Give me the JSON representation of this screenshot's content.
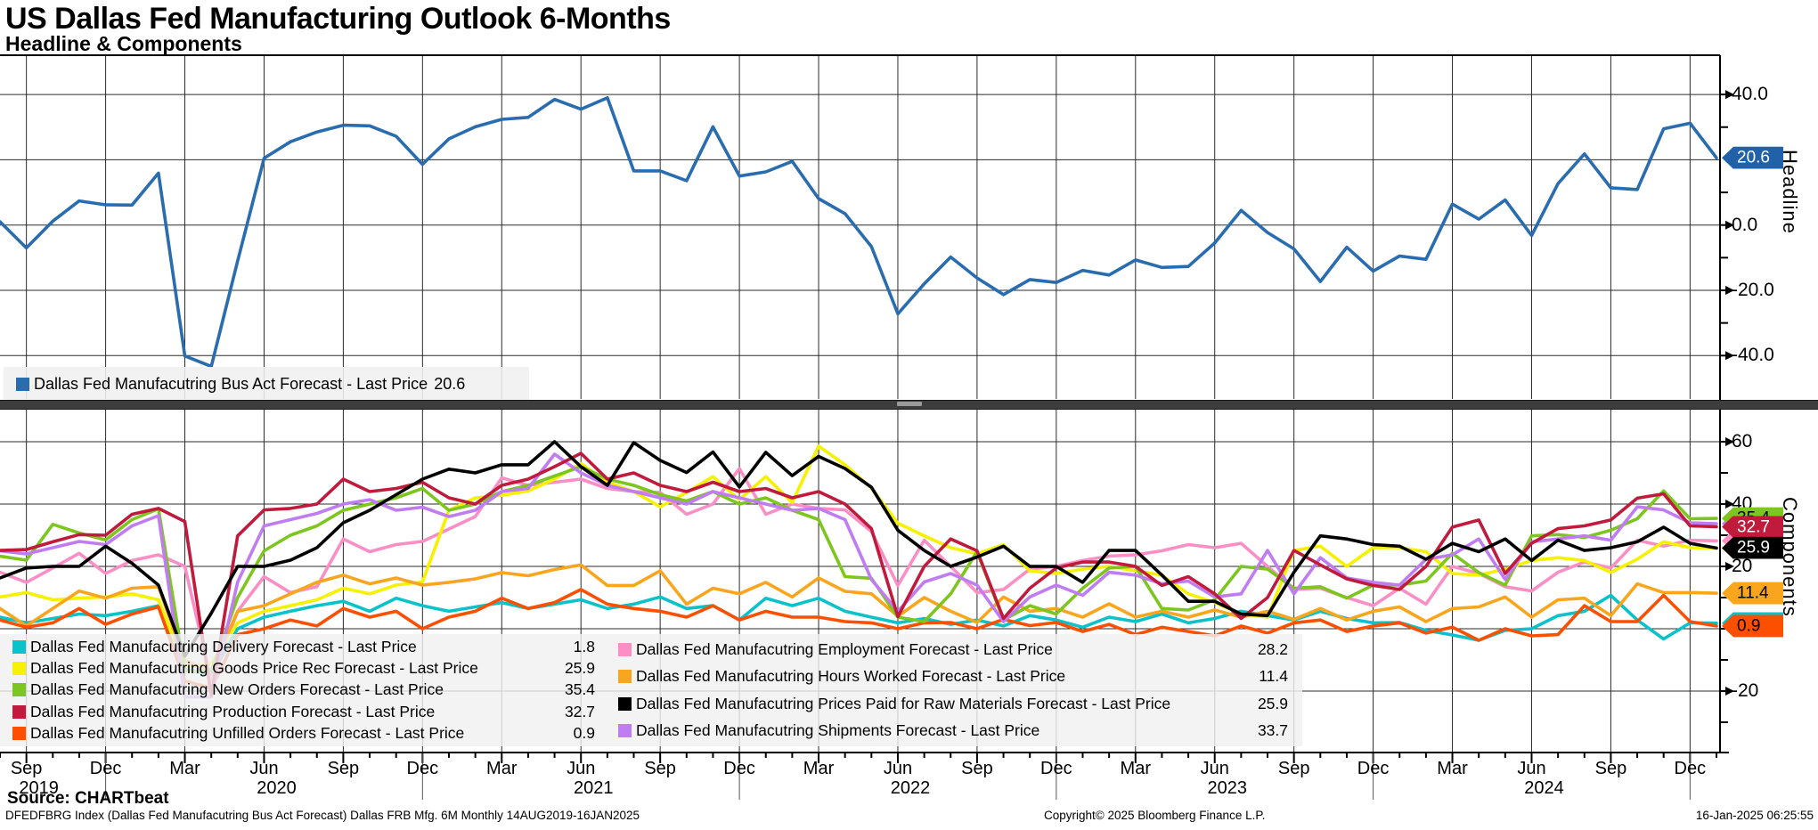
{
  "header": {
    "title": "US Dallas Fed Manufacturing Outlook 6-Months",
    "subtitle": "Headline & Components"
  },
  "footer": {
    "source": "Source: CHARTbeat",
    "disclaimer": "DFEDFBRG Index (Dallas Fed Manufacutring Bus Act Forecast) Dallas FRB Mfg. 6M  Monthly 14AUG2019-16JAN2025",
    "copyright": "Copyright© 2025 Bloomberg Finance L.P.",
    "timestamp": "16-Jan-2025 06:25:55"
  },
  "colors": {
    "headline_blue": "#2a6cb0",
    "badge_blue": "#2061a8",
    "grid": "#2b2b2b",
    "axis": "#000000",
    "divider": "#3d3d3d",
    "legend_bg": "#f0f0f0"
  },
  "chart_data": [
    {
      "type": "line",
      "panel": "Headline",
      "axis_label": "Headline",
      "legend_position": "bottom-left",
      "grid": true,
      "ylim": [
        -52,
        53
      ],
      "yticks_labeled": [
        {
          "v": 40,
          "label": "40.0"
        },
        {
          "v": 0,
          "label": "0.0"
        },
        {
          "v": -20,
          "label": "-20.0"
        },
        {
          "v": -40,
          "label": "-40.0"
        }
      ],
      "yticks_grid": [
        40,
        20,
        0,
        -20,
        -40
      ],
      "yticks_minor": [
        30,
        10,
        -10,
        -30
      ],
      "series": [
        {
          "id": "bus-act",
          "label": "Dallas Fed Manufacutring Bus Act Forecast - Last Price",
          "value_label": "20.6",
          "last_price": 20.6,
          "color": "#2a6cb0",
          "badge_bg": "#2061a8",
          "badge_fg": "#ffffff",
          "values": [
            1,
            -7,
            1.2,
            7.4,
            6.2,
            6.1,
            15.9,
            -40.1,
            -43.3,
            -11,
            20.5,
            25.5,
            28.5,
            30.6,
            30.4,
            27.2,
            18.6,
            26.4,
            30.1,
            32.4,
            33,
            38.5,
            35.5,
            39,
            16.6,
            16.6,
            13.6,
            30.1,
            15,
            16.3,
            19.5,
            8.1,
            3.5,
            -6.6,
            -27.2,
            -18,
            -9.8,
            -16.2,
            -21.3,
            -16.7,
            -17.6,
            -13.9,
            -15.3,
            -10.7,
            -13,
            -12.7,
            -5.5,
            4.5,
            -2.3,
            -7.3,
            -17.3,
            -6.8,
            -14.1,
            -9.5,
            -10.5,
            6.4,
            1.8,
            7.7,
            -3.2,
            12.7,
            21.8,
            11.4,
            10.9,
            29.5,
            31.2,
            20.6
          ]
        }
      ]
    },
    {
      "type": "line",
      "panel": "Components",
      "axis_label": "Components",
      "legend_position": "bottom-left",
      "grid": true,
      "ylim": [
        -40,
        70
      ],
      "yticks_labeled": [
        {
          "v": 60,
          "label": "60"
        },
        {
          "v": 40,
          "label": "40"
        },
        {
          "v": 20,
          "label": "20"
        },
        {
          "v": -20,
          "label": "-20"
        }
      ],
      "yticks_grid": [
        60,
        40,
        20,
        0,
        -20
      ],
      "yticks_minor": [
        50,
        30,
        10,
        0,
        -10,
        -30
      ],
      "series": [
        {
          "id": "delivery",
          "label": "Dallas Fed Manufacutring Delivery Forecast - Last Price",
          "value_label": "1.8",
          "last_price": 1.8,
          "color": "#0ac2c8",
          "badge_bg": "#0ac2c8",
          "badge_fg": "#000000",
          "values": [
            3.7,
            1.9,
            3.3,
            4.7,
            4.2,
            5.6,
            7.4,
            -13,
            -14.9,
            0,
            3.7,
            5.6,
            7.4,
            8.8,
            5.6,
            9.8,
            7.4,
            5.6,
            7,
            8.4,
            6.5,
            7.9,
            9.3,
            6.5,
            7.9,
            10.2,
            6.5,
            7.4,
            2.8,
            9.8,
            7.4,
            9.8,
            5.6,
            3.7,
            1.9,
            3.3,
            1.4,
            2.8,
            0.9,
            4.2,
            2.8,
            0.5,
            3.7,
            2.3,
            4.7,
            1.9,
            3.3,
            5.6,
            4.2,
            2.8,
            5.6,
            3.3,
            1.9,
            2,
            -0.5,
            -2,
            -3.7,
            -0.5,
            0,
            4.2,
            5.6,
            10.7,
            2.8,
            -3.3,
            1.9,
            1.8
          ]
        },
        {
          "id": "goods-price",
          "label": "Dallas Fed Manufacutring Goods Price Rec Forecast - Last Price",
          "value_label": "25.9",
          "last_price": 25.9,
          "color": "#f5f100",
          "badge_bg": "#f5f100",
          "badge_fg": "#000000",
          "values": [
            10.2,
            11.6,
            9.3,
            9.8,
            10.2,
            11.2,
            9.3,
            -12.1,
            -11.2,
            1.9,
            5.6,
            7.4,
            9.3,
            13,
            11.2,
            14,
            15,
            38,
            42,
            42.8,
            44.2,
            48,
            53,
            47,
            44,
            39.1,
            43.7,
            48.8,
            41.4,
            48.8,
            40.5,
            58.6,
            52.6,
            45.1,
            33.9,
            29.8,
            26,
            24,
            27,
            18.6,
            17.7,
            19.1,
            20,
            18.6,
            17.2,
            11.2,
            8.4,
            4.7,
            3.7,
            25.1,
            26.5,
            20,
            26,
            26,
            24.7,
            17.7,
            17.2,
            19.1,
            21.9,
            22.8,
            21.9,
            18.1,
            22.3,
            27.9,
            26,
            25.9
          ]
        },
        {
          "id": "new-orders",
          "label": "Dallas Fed Manufacutring New Orders Forecast - Last Price",
          "value_label": "35.4",
          "last_price": 35.4,
          "color": "#7dc61f",
          "badge_bg": "#7dc61f",
          "badge_fg": "#000000",
          "values": [
            23.3,
            22,
            33.5,
            30.7,
            28.5,
            35,
            38.5,
            -13.5,
            -13.5,
            10,
            25,
            30,
            33,
            38,
            40,
            42,
            45,
            38,
            40,
            44,
            46,
            49,
            52,
            48,
            46,
            43,
            41,
            44,
            40,
            42,
            38,
            35,
            16.7,
            16.2,
            3.7,
            2.3,
            11.2,
            24.7,
            2.8,
            7.4,
            4.7,
            13,
            19.5,
            20,
            6.5,
            6,
            9.3,
            20,
            19.1,
            13,
            13.5,
            9.8,
            14,
            14,
            15.3,
            24.2,
            18,
            14,
            29.8,
            30.2,
            29.3,
            31.6,
            35.3,
            44.2,
            35.3,
            35.4
          ]
        },
        {
          "id": "production",
          "label": "Dallas Fed Manufacutring Production Forecast - Last Price",
          "value_label": "32.7",
          "last_price": 32.7,
          "color": "#c01a3c",
          "badge_bg": "#c01a3c",
          "badge_fg": "#ffffff",
          "values": [
            25.1,
            25.4,
            27.9,
            30.2,
            30,
            36.7,
            38.6,
            34.4,
            -21.4,
            29.8,
            38.1,
            38.6,
            40,
            48,
            44,
            45,
            47,
            42,
            40,
            46,
            48,
            52,
            56.3,
            48,
            50,
            46,
            44,
            47,
            44,
            45,
            42,
            44,
            40,
            32.1,
            3.9,
            20,
            28.8,
            25,
            3.3,
            13,
            19.5,
            21.4,
            21.4,
            20,
            13.9,
            16.7,
            11.2,
            3.3,
            10,
            25.1,
            20.5,
            16,
            13.9,
            12.6,
            20,
            32.6,
            34.9,
            17.7,
            27.4,
            32.1,
            33,
            34.9,
            41.9,
            43.3,
            33,
            32.7
          ]
        },
        {
          "id": "unfilled-orders",
          "label": "Dallas Fed Manufacutring Unfilled Orders Forecast - Last Price",
          "value_label": "0.9",
          "last_price": 0.9,
          "color": "#fc4f00",
          "badge_bg": "#fc4f00",
          "badge_fg": "#000000",
          "values": [
            2.8,
            0.5,
            1.9,
            6.5,
            1.4,
            4.7,
            7,
            -16.7,
            -19.1,
            -1.9,
            0,
            2.8,
            0.9,
            6.5,
            3.7,
            5.6,
            0,
            3.7,
            5.6,
            9.8,
            6.5,
            8.4,
            12.6,
            7.9,
            6.5,
            5.6,
            3.7,
            7.4,
            2.8,
            5.6,
            3.7,
            3.7,
            2.3,
            1.9,
            0,
            1.9,
            2,
            0,
            3,
            1,
            2,
            -0.9,
            1.4,
            -1.9,
            0.5,
            -0.9,
            -2.3,
            0.9,
            -1.4,
            1.9,
            2.8,
            -0.9,
            0.9,
            1.9,
            -1.4,
            0.5,
            -3.7,
            0,
            -2.3,
            -1.9,
            7.4,
            2.3,
            2.3,
            10.7,
            2.3,
            0.9
          ]
        },
        {
          "id": "employment",
          "label": "Dallas Fed Manufacutring Employment Forecast - Last Price",
          "value_label": "28.2",
          "last_price": 28.2,
          "color": "#fb8fc5",
          "badge_bg": "#fb8fc5",
          "badge_fg": "#000000",
          "values": [
            18.1,
            14.9,
            19.5,
            24.2,
            17.7,
            21.9,
            23.7,
            20,
            -16.7,
            5.6,
            16.7,
            11.6,
            13.5,
            28.8,
            24.7,
            27,
            28,
            32,
            36,
            48.4,
            46,
            47,
            48,
            45,
            44,
            43.7,
            36.7,
            40,
            51.4,
            36.7,
            40,
            38.6,
            38.1,
            31.2,
            13.9,
            28.4,
            20,
            11.6,
            12.6,
            19.1,
            20,
            21.9,
            23.3,
            23.7,
            25,
            27,
            26,
            27.4,
            20,
            12.6,
            13,
            10,
            7.4,
            13,
            7.9,
            20,
            17.7,
            13.5,
            12.1,
            18.1,
            21.4,
            19.5,
            28.4,
            26.5,
            28.4,
            28.2
          ]
        },
        {
          "id": "hours-worked",
          "label": "Dallas Fed Manufacutring Hours Worked Forecast - Last Price",
          "value_label": "11.4",
          "last_price": 11.4,
          "color": "#faa51e",
          "badge_bg": "#faa51e",
          "badge_fg": "#000000",
          "values": [
            6.5,
            0.9,
            6.5,
            12.1,
            9.8,
            13,
            13.5,
            -10.2,
            -13.5,
            5.6,
            7.4,
            11.2,
            14.9,
            17.2,
            14.4,
            16.3,
            14,
            14.9,
            16,
            18,
            17,
            19,
            20.5,
            13.9,
            13.9,
            18.6,
            7.9,
            13,
            11.2,
            14.9,
            10.2,
            16.3,
            12,
            11.2,
            4,
            10,
            5.6,
            2,
            10.2,
            5.6,
            6.5,
            3.7,
            8,
            3.7,
            5.6,
            3.7,
            6,
            3.7,
            5.6,
            3,
            6.5,
            2.8,
            5.6,
            7,
            2.3,
            6.5,
            7,
            10.2,
            3.7,
            9.3,
            9.8,
            4.2,
            14.4,
            11.6,
            11.6,
            11.4
          ]
        },
        {
          "id": "prices-paid",
          "label": "Dallas Fed Manufacutring Prices Paid for Raw Materials Forecast - Last Price",
          "value_label": "25.9",
          "last_price": 25.9,
          "color": "#000000",
          "badge_bg": "#000000",
          "badge_fg": "#ffffff",
          "values": [
            16.3,
            19.5,
            20,
            20,
            26.5,
            21,
            14,
            -8.8,
            5,
            20,
            20,
            22,
            26,
            34,
            38,
            43,
            48,
            51.2,
            50,
            52.6,
            52.6,
            60,
            52,
            46,
            59.7,
            54,
            50.1,
            56.7,
            45.5,
            56.6,
            49.1,
            55.3,
            51.4,
            45.4,
            31.6,
            25.1,
            20,
            23,
            26.5,
            20,
            20,
            14.9,
            25.1,
            25.1,
            17.2,
            8.8,
            8.8,
            4.7,
            4.2,
            18.1,
            29.8,
            28.8,
            27,
            26.5,
            22.3,
            27.4,
            24.7,
            28.8,
            21.9,
            28.4,
            25.1,
            26,
            27.9,
            32.6,
            27.4,
            25.9
          ]
        },
        {
          "id": "shipments",
          "label": "Dallas Fed Manufacutring Shipments Forecast - Last Price",
          "value_label": "33.7",
          "last_price": 33.7,
          "color": "#c07cf2",
          "badge_bg": "#c07cf2",
          "badge_fg": "#000000",
          "values": [
            25,
            24,
            26,
            28,
            27,
            33,
            36.3,
            -21.9,
            -21.9,
            15,
            33,
            35,
            37,
            40,
            41.4,
            38,
            39,
            36,
            38,
            44,
            45,
            56,
            50,
            46,
            44,
            42,
            40,
            44,
            42,
            40,
            38,
            38.6,
            35,
            15.8,
            5.6,
            15,
            17.7,
            14,
            2.3,
            10.2,
            14,
            10.7,
            18.1,
            17.2,
            14.4,
            15.3,
            10.2,
            11.2,
            25.1,
            11.2,
            22.8,
            16.3,
            14.9,
            14,
            22.3,
            23.7,
            28.8,
            15.8,
            27.9,
            28.8,
            29.8,
            28.4,
            39.1,
            38.1,
            34,
            33.7
          ]
        }
      ]
    }
  ],
  "x_axis": {
    "months": [
      "Aug 2019",
      "Sep 2019",
      "Oct 2019",
      "Nov 2019",
      "Dec 2019",
      "Jan 2020",
      "Feb 2020",
      "Mar 2020",
      "Apr 2020",
      "May 2020",
      "Jun 2020",
      "Jul 2020",
      "Aug 2020",
      "Sep 2020",
      "Oct 2020",
      "Nov 2020",
      "Dec 2020",
      "Jan 2021",
      "Feb 2021",
      "Mar 2021",
      "Apr 2021",
      "May 2021",
      "Jun 2021",
      "Jul 2021",
      "Aug 2021",
      "Sep 2021",
      "Oct 2021",
      "Nov 2021",
      "Dec 2021",
      "Jan 2022",
      "Feb 2022",
      "Mar 2022",
      "Apr 2022",
      "May 2022",
      "Jun 2022",
      "Jul 2022",
      "Aug 2022",
      "Sep 2022",
      "Oct 2022",
      "Nov 2022",
      "Dec 2022",
      "Jan 2023",
      "Feb 2023",
      "Mar 2023",
      "Apr 2023",
      "May 2023",
      "Jun 2023",
      "Jul 2023",
      "Aug 2023",
      "Sep 2023",
      "Oct 2023",
      "Nov 2023",
      "Dec 2023",
      "Jan 2024",
      "Feb 2024",
      "Mar 2024",
      "Apr 2024",
      "May 2024",
      "Jun 2024",
      "Jul 2024",
      "Aug 2024",
      "Sep 2024",
      "Oct 2024",
      "Nov 2024",
      "Dec 2024",
      "Jan 2025"
    ],
    "quarterly_tick_indices": [
      1,
      4,
      7,
      10,
      13,
      16,
      19,
      22,
      25,
      28,
      31,
      34,
      37,
      40,
      43,
      46,
      49,
      52,
      55,
      58,
      61,
      64
    ],
    "year_labels": [
      {
        "text": "2019",
        "index": 1
      },
      {
        "text": "2020",
        "index": 10
      },
      {
        "text": "2021",
        "index": 22
      },
      {
        "text": "2022",
        "index": 34
      },
      {
        "text": "2023",
        "index": 46
      },
      {
        "text": "2024",
        "index": 58
      }
    ],
    "year_separator_indices": [
      4,
      16,
      28,
      40,
      52,
      64
    ]
  }
}
